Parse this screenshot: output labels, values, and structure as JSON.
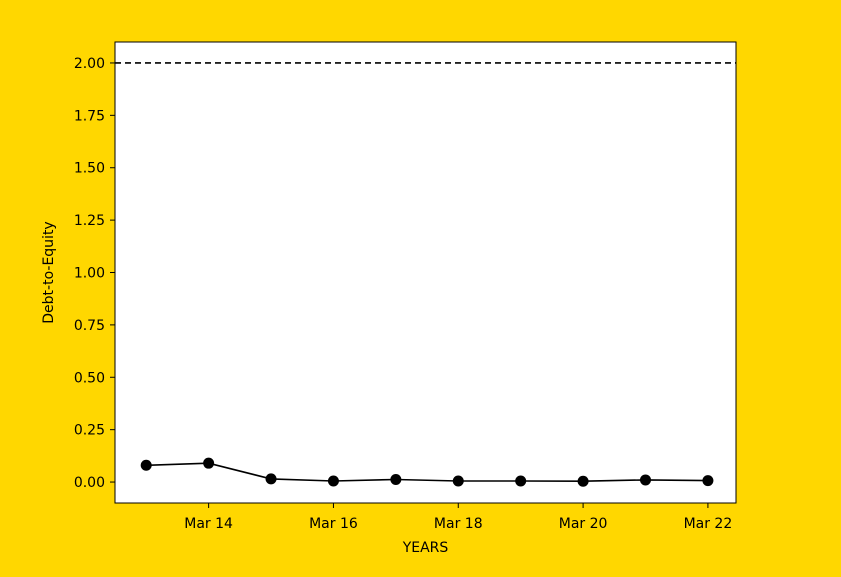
{
  "colors": {
    "background": "#FFD700",
    "plot_area": "#FFFFFF",
    "series_line": "#000000",
    "marker": "#000000",
    "threshold": "#000000"
  },
  "chart_data": {
    "type": "line",
    "title": "",
    "xlabel": "YEARS",
    "ylabel": "Debt-to-Equity",
    "grid": false,
    "ylim": [
      -0.1,
      2.1
    ],
    "xlim": [
      2012.5,
      2022.45
    ],
    "x": [
      2013,
      2014,
      2015,
      2016,
      2017,
      2018,
      2019,
      2020,
      2021,
      2022
    ],
    "series": [
      {
        "name": "Debt-to-Equity",
        "values": [
          0.08,
          0.09,
          0.015,
          0.005,
          0.012,
          0.005,
          0.005,
          0.004,
          0.01,
          0.007
        ],
        "marker": "circle"
      }
    ],
    "threshold": {
      "value": 2.0,
      "style": "dashed"
    },
    "yticks": [
      {
        "value": 0.0,
        "label": "0.00"
      },
      {
        "value": 0.25,
        "label": "0.25"
      },
      {
        "value": 0.5,
        "label": "0.50"
      },
      {
        "value": 0.75,
        "label": "0.75"
      },
      {
        "value": 1.0,
        "label": "1.00"
      },
      {
        "value": 1.25,
        "label": "1.25"
      },
      {
        "value": 1.5,
        "label": "1.50"
      },
      {
        "value": 1.75,
        "label": "1.75"
      },
      {
        "value": 2.0,
        "label": "2.00"
      }
    ],
    "xticks": [
      {
        "value": 2014,
        "label": "Mar 14"
      },
      {
        "value": 2016,
        "label": "Mar 16"
      },
      {
        "value": 2018,
        "label": "Mar 18"
      },
      {
        "value": 2020,
        "label": "Mar 20"
      },
      {
        "value": 2022,
        "label": "Mar 22"
      }
    ]
  }
}
